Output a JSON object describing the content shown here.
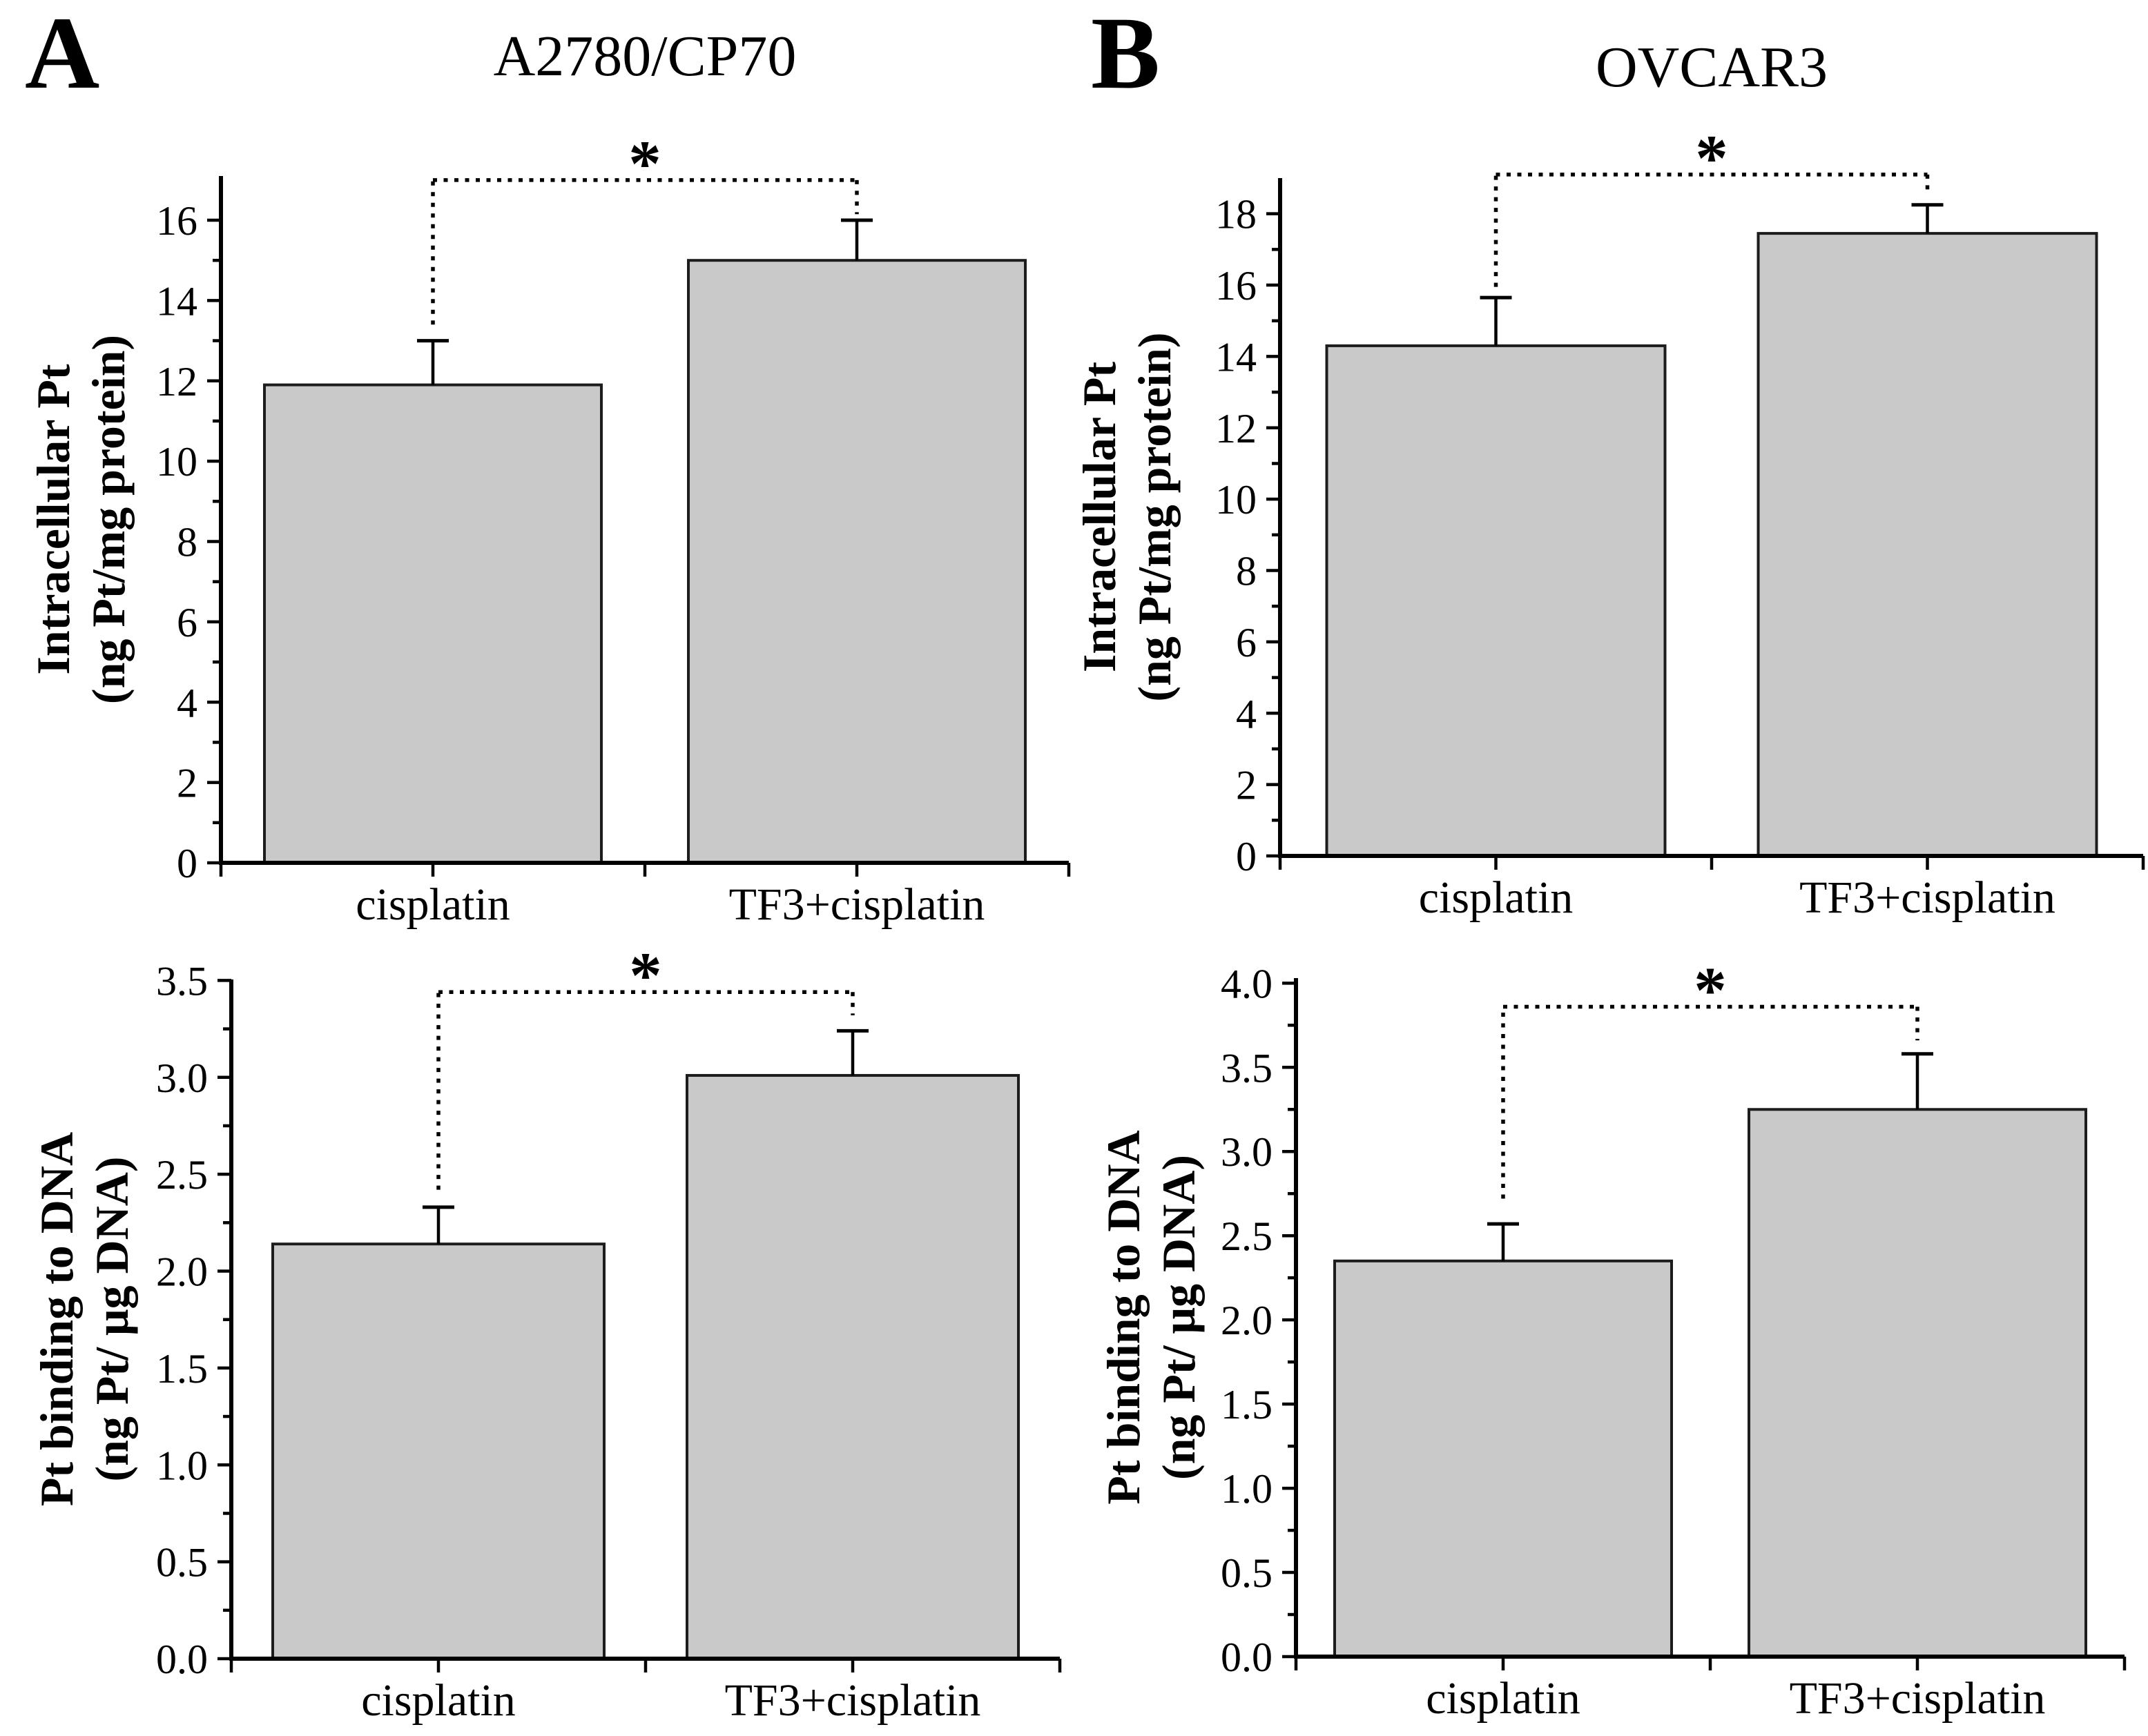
{
  "figure": {
    "background": "#ffffff",
    "panel_a": {
      "letter": "A",
      "title": "A2780/CP70"
    },
    "panel_b": {
      "letter": "B",
      "title": "OVCAR3"
    },
    "styles": {
      "bar_fill": "#c9c9c9",
      "bar_stroke": "#1c1c1c",
      "axis_color": "#000000",
      "text_color": "#000000",
      "significance_color": "#000000"
    }
  },
  "chart_data": [
    {
      "id": "a-top",
      "type": "bar",
      "panel": "A",
      "cell_line": "A2780/CP70",
      "title": "A2780/CP70",
      "ylabel_lines": [
        "Intracellular Pt",
        "(ng Pt/mg protein)"
      ],
      "categories": [
        "cisplatin",
        "TF3+cisplatin"
      ],
      "values": [
        11.9,
        15.0
      ],
      "errors_plus": [
        1.1,
        1.0
      ],
      "ylim": [
        0,
        17.1
      ],
      "ytick_step": 2,
      "minor_tick_step": 1,
      "yticks": [
        {
          "v": 0,
          "label": "0"
        },
        {
          "v": 2,
          "label": "2"
        },
        {
          "v": 4,
          "label": "4"
        },
        {
          "v": 6,
          "label": "6"
        },
        {
          "v": 8,
          "label": "8"
        },
        {
          "v": 10,
          "label": "10"
        },
        {
          "v": 12,
          "label": "12"
        },
        {
          "v": 14,
          "label": "14"
        },
        {
          "v": 16,
          "label": "16"
        }
      ],
      "grid": false,
      "legend": null,
      "significance": {
        "label": "*",
        "line_y": 17.0,
        "drop_left_to": 13.4,
        "drop_right_to": 16.15
      }
    },
    {
      "id": "b-top",
      "type": "bar",
      "panel": "B",
      "cell_line": "OVCAR3",
      "title": "OVCAR3",
      "ylabel_lines": [
        "Intracellular Pt",
        "(ng Pt/mg protein)"
      ],
      "categories": [
        "cisplatin",
        "TF3+cisplatin"
      ],
      "values": [
        14.3,
        17.45
      ],
      "errors_plus": [
        1.35,
        0.8
      ],
      "ylim": [
        0,
        19.0
      ],
      "ytick_step": 2,
      "minor_tick_step": 1,
      "yticks": [
        {
          "v": 0,
          "label": "0"
        },
        {
          "v": 2,
          "label": "2"
        },
        {
          "v": 4,
          "label": "4"
        },
        {
          "v": 6,
          "label": "6"
        },
        {
          "v": 8,
          "label": "8"
        },
        {
          "v": 10,
          "label": "10"
        },
        {
          "v": 12,
          "label": "12"
        },
        {
          "v": 14,
          "label": "14"
        },
        {
          "v": 16,
          "label": "16"
        },
        {
          "v": 18,
          "label": "18"
        }
      ],
      "grid": false,
      "legend": null,
      "significance": {
        "label": "*",
        "line_y": 19.1,
        "drop_left_to": 15.95,
        "drop_right_to": 18.5
      }
    },
    {
      "id": "a-bottom",
      "type": "bar",
      "panel": "A",
      "cell_line": "A2780/CP70",
      "title": "",
      "ylabel_lines": [
        "Pt binding to DNA",
        "(ng Pt/ μg DNA)"
      ],
      "categories": [
        "cisplatin",
        "TF3+cisplatin"
      ],
      "values": [
        2.14,
        3.01
      ],
      "errors_plus": [
        0.19,
        0.23
      ],
      "ylim": [
        0,
        3.505
      ],
      "ytick_step": 0.5,
      "minor_tick_step": 0.25,
      "yticks": [
        {
          "v": 0,
          "label": "0.0"
        },
        {
          "v": 0.5,
          "label": "0.5"
        },
        {
          "v": 1.0,
          "label": "1.0"
        },
        {
          "v": 1.5,
          "label": "1.5"
        },
        {
          "v": 2.0,
          "label": "2.0"
        },
        {
          "v": 2.5,
          "label": "2.5"
        },
        {
          "v": 3.0,
          "label": "3.0"
        },
        {
          "v": 3.5,
          "label": "3.5"
        }
      ],
      "grid": false,
      "legend": null,
      "significance": {
        "label": "*",
        "line_y": 3.44,
        "drop_left_to": 2.42,
        "drop_right_to": 3.32
      }
    },
    {
      "id": "b-bottom",
      "type": "bar",
      "panel": "B",
      "cell_line": "OVCAR3",
      "title": "",
      "ylabel_lines": [
        "Pt binding to DNA",
        "(ng Pt/ μg DNA)"
      ],
      "categories": [
        "cisplatin",
        "TF3+cisplatin"
      ],
      "values": [
        2.35,
        3.25
      ],
      "errors_plus": [
        0.22,
        0.33
      ],
      "ylim": [
        0,
        4.03
      ],
      "ytick_step": 0.5,
      "minor_tick_step": 0.25,
      "yticks": [
        {
          "v": 0,
          "label": "0.0"
        },
        {
          "v": 0.5,
          "label": "0.5"
        },
        {
          "v": 1.0,
          "label": "1.0"
        },
        {
          "v": 1.5,
          "label": "1.5"
        },
        {
          "v": 2.0,
          "label": "2.0"
        },
        {
          "v": 2.5,
          "label": "2.5"
        },
        {
          "v": 3.0,
          "label": "3.0"
        },
        {
          "v": 3.5,
          "label": "3.5"
        },
        {
          "v": 4.0,
          "label": "4.0"
        }
      ],
      "grid": false,
      "legend": null,
      "significance": {
        "label": "*",
        "line_y": 3.86,
        "drop_left_to": 2.72,
        "drop_right_to": 3.66
      }
    }
  ]
}
